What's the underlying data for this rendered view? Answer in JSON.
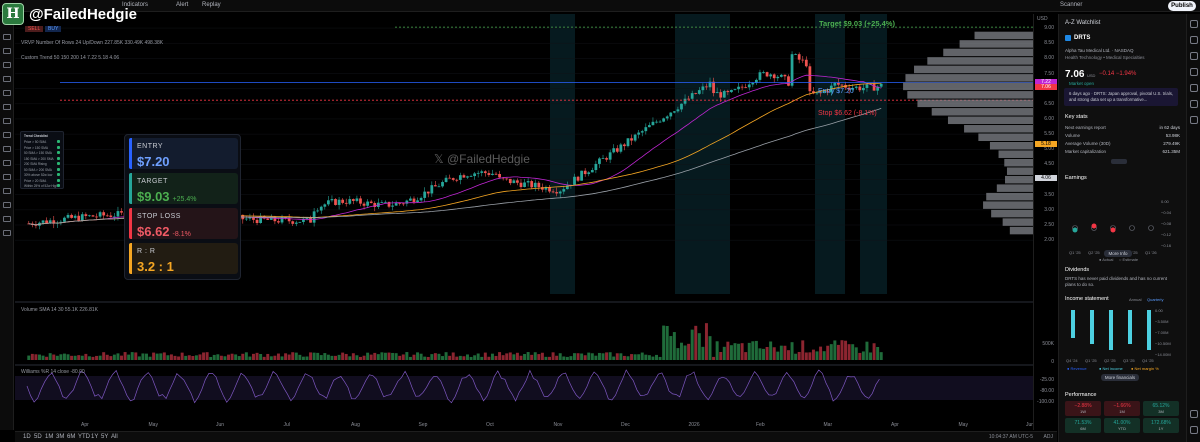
{
  "brand": {
    "handle": "@FailedHedgie",
    "logo_letter": "H"
  },
  "topbar": {
    "indicators": "Indicators",
    "alert": "Alert",
    "replay": "Replay",
    "scanner": "Scanner",
    "publish": "Publish"
  },
  "legend": {
    "vrvp": "VRVP  Number Of Rows 24 Up/Down  227.85K  330.49K  498.38K",
    "custom_trend": "Custom Trend  50 150 200 14  7.22  5.18  4.06",
    "sell_tag": "SELL",
    "buy_tag": "BUY"
  },
  "lines": {
    "target": "Target $9.03 (+25.4%)",
    "entry": "Entry $7.20",
    "stop": "Stop $6.62 (-8.1%)"
  },
  "watermark": "𝕏 @FailedHedgie",
  "card": {
    "entry": {
      "label": "ENTRY",
      "value": "$7.20"
    },
    "target": {
      "label": "TARGET",
      "value": "$9.03",
      "pct": "+25.4%"
    },
    "stop": {
      "label": "STOP LOSS",
      "value": "$6.62",
      "pct": "-8.1%"
    },
    "rr": {
      "label": "R : R",
      "value": "3.2 : 1"
    }
  },
  "checklist": {
    "title": "Trend Checklist",
    "items": [
      "Price > 50 SMA",
      "Price > 150 SMA",
      "50 SMA > 150 SMA",
      "150 SMA > 200 SMA",
      "200 SMA Rising",
      "50 SMA > 200 SMA",
      "30% above 52w low",
      "Price > 20 SMA",
      "Within 25% of 52w High"
    ]
  },
  "volume_legend": "Volume SMA  14 30  55.1K  226.81K",
  "williams_legend": "Williams %R  14 close  -80.00",
  "price_scale": {
    "ticks": [
      "9.00",
      "8.50",
      "8.00",
      "7.50",
      "7.00",
      "6.50",
      "6.00",
      "5.50",
      "5.00",
      "4.50",
      "4.00",
      "3.50",
      "3.00",
      "2.50",
      "2.00"
    ],
    "usd": "USD",
    "last_price": "7.06",
    "last_time": "00:53:13",
    "tag_722": "7.22",
    "tag_518": "5.18",
    "tag_406": "4.06",
    "vol_ticks": [
      "500K",
      "0"
    ],
    "wr_ticks": [
      "-25.00",
      "-80.00",
      "-100.00"
    ]
  },
  "time_axis": [
    "Apr",
    "May",
    "Jun",
    "Jul",
    "Aug",
    "Sep",
    "Oct",
    "Nov",
    "Dec",
    "2026",
    "Feb",
    "Mar",
    "Apr",
    "May",
    "Jun"
  ],
  "bottombar": {
    "ranges": [
      "1D",
      "5D",
      "1M",
      "3M",
      "6M",
      "YTD",
      "1Y",
      "5Y",
      "All"
    ],
    "clock": "10:04:37 AM UTC-5",
    "adj": "ADJ"
  },
  "panel": {
    "watchlist": "A-Z Watchlist",
    "symbol": "DRTS",
    "company": "Alpha Tau Medical Ltd.",
    "exchange": "NASDAQ",
    "sector": "Health Technology • Medical Specialties",
    "price": "7.06",
    "currency": "USD",
    "change": "−0.14",
    "change_pct": "−1.94%",
    "market_status": "Market open",
    "news": "6 days ago · DRTS: Japan approval, pivotal U.S. trials, and strong data set up a transformative...",
    "key_stats_title": "Key stats",
    "stats": [
      {
        "k": "Next earnings report",
        "v": "in 62 days"
      },
      {
        "k": "Volume",
        "v": "53.98K"
      },
      {
        "k": "Average Volume (30D)",
        "v": "279.49K"
      },
      {
        "k": "Market capitalization",
        "v": "621.35M"
      }
    ],
    "earnings_title": "Earnings",
    "earnings_ticks": [
      "0.00",
      "−0.04",
      "−0.08",
      "−0.12",
      "−0.16"
    ],
    "earnings_q": [
      "Q1 '25",
      "Q2 '25",
      "Q3 '25",
      "Q4 '25",
      "Q1 '26"
    ],
    "actual": "Actual",
    "estimate": "Estimate",
    "more_info": "More Info",
    "dividends_title": "Dividends",
    "dividends_text": "DRTS has never paid dividends and has no current plans to do so.",
    "income_title": "Income statement",
    "annual": "Annual",
    "quarterly": "Quarterly",
    "income_ticks": [
      "0.00",
      "−3.50M",
      "−7.00M",
      "−10.50M",
      "−14.00M"
    ],
    "income_q": [
      "Q4 '24",
      "Q1 '25",
      "Q2 '25",
      "Q3 '25",
      "Q4 '25"
    ],
    "income_legend": [
      "Revenue",
      "Net income",
      "Net margin %"
    ],
    "more_financials": "More financials",
    "performance_title": "Performance",
    "perf": [
      {
        "v": "−2.88%",
        "k": "1W"
      },
      {
        "v": "−1.66%",
        "k": "1M"
      },
      {
        "v": "65.12%",
        "k": "3M"
      },
      {
        "v": "71.53%",
        "k": "6M"
      },
      {
        "v": "41.00%",
        "k": "YTD"
      },
      {
        "v": "172.68%",
        "k": "1Y"
      }
    ]
  },
  "colors": {
    "up": "#26a69a",
    "down": "#ef5350",
    "target": "#4caf50",
    "entry": "#2962ff",
    "stop": "#f23645",
    "rr": "#f5a623"
  }
}
